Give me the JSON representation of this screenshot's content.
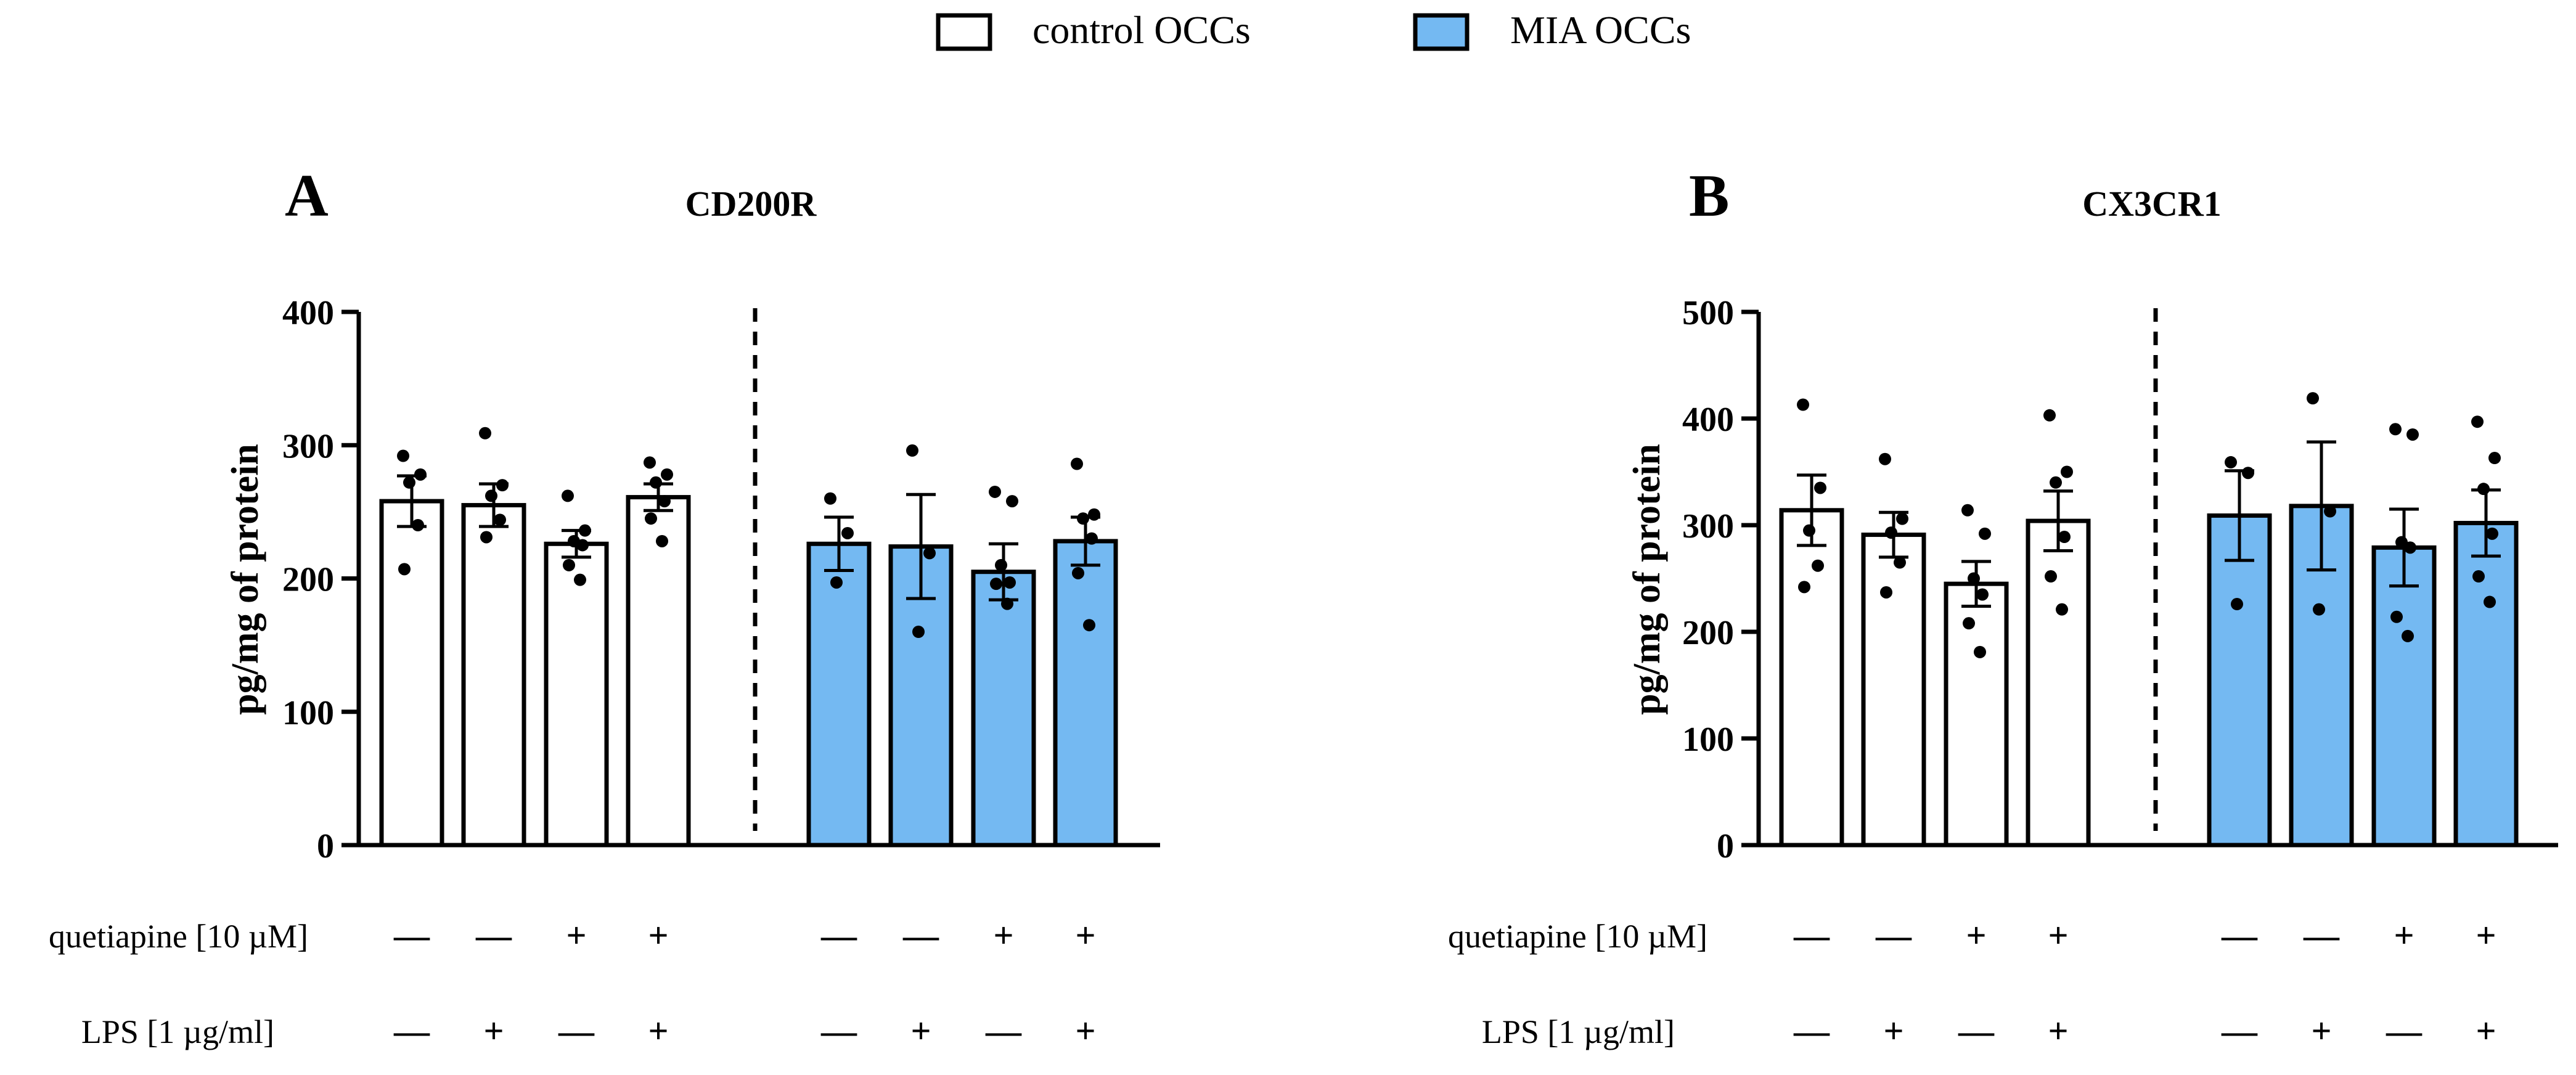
{
  "legend": {
    "items": [
      {
        "label": "control OCCs",
        "color": "#ffffff"
      },
      {
        "label": "MIA OCCs",
        "color": "#74b9f2"
      }
    ]
  },
  "row_labels": {
    "quetiapine": "quetiapine [10 µM]",
    "lps": "LPS [1 µg/ml]"
  },
  "condition_signs": {
    "quetiapine": [
      "—",
      "—",
      "+",
      "+",
      "—",
      "—",
      "+",
      "+"
    ],
    "lps": [
      "—",
      "+",
      "—",
      "+",
      "—",
      "+",
      "—",
      "+"
    ]
  },
  "chart_data": [
    {
      "type": "bar",
      "panel_label": "A",
      "title": "CD200R",
      "ylabel": "pg/mg of protein",
      "ylim": [
        0,
        400
      ],
      "yticks": [
        0,
        100,
        200,
        300,
        400
      ],
      "tick_labels": [
        "0",
        "100",
        "200",
        "300",
        "400"
      ],
      "groups": [
        {
          "name": "control OCCs",
          "color": "#ffffff",
          "bars": [
            {
              "mean": 258,
              "sem": 19,
              "points": [
                292,
                278,
                272,
                240,
                207
              ]
            },
            {
              "mean": 255,
              "sem": 16,
              "points": [
                309,
                270,
                262,
                244,
                231
              ]
            },
            {
              "mean": 226,
              "sem": 10,
              "points": [
                262,
                236,
                228,
                225,
                210,
                199
              ]
            },
            {
              "mean": 261,
              "sem": 10,
              "points": [
                287,
                278,
                272,
                258,
                245,
                228
              ]
            }
          ]
        },
        {
          "name": "MIA OCCs",
          "color": "#74b9f2",
          "bars": [
            {
              "mean": 226,
              "sem": 20,
              "points": [
                260,
                234,
                197
              ]
            },
            {
              "mean": 224,
              "sem": 39,
              "points": [
                296,
                219,
                160
              ]
            },
            {
              "mean": 205,
              "sem": 21,
              "points": [
                265,
                258,
                210,
                197,
                196,
                181
              ]
            },
            {
              "mean": 228,
              "sem": 18,
              "points": [
                286,
                248,
                245,
                230,
                204,
                165
              ]
            }
          ]
        }
      ]
    },
    {
      "type": "bar",
      "panel_label": "B",
      "title": "CX3CR1",
      "ylabel": "pg/mg of protein",
      "ylim": [
        0,
        500
      ],
      "yticks": [
        0,
        100,
        200,
        300,
        400,
        500
      ],
      "tick_labels": [
        "0",
        "100",
        "200",
        "300",
        "400",
        "500"
      ],
      "groups": [
        {
          "name": "control OCCs",
          "color": "#ffffff",
          "bars": [
            {
              "mean": 314,
              "sem": 33,
              "points": [
                413,
                335,
                295,
                262,
                242
              ]
            },
            {
              "mean": 291,
              "sem": 21,
              "points": [
                362,
                306,
                293,
                265,
                237
              ]
            },
            {
              "mean": 245,
              "sem": 21,
              "points": [
                314,
                292,
                250,
                235,
                208,
                181
              ]
            },
            {
              "mean": 304,
              "sem": 28,
              "points": [
                403,
                350,
                340,
                289,
                252,
                221
              ]
            }
          ]
        },
        {
          "name": "MIA OCCs",
          "color": "#74b9f2",
          "bars": [
            {
              "mean": 309,
              "sem": 42,
              "points": [
                359,
                349,
                226
              ]
            },
            {
              "mean": 318,
              "sem": 60,
              "points": [
                419,
                313,
                221
              ]
            },
            {
              "mean": 279,
              "sem": 36,
              "points": [
                390,
                385,
                284,
                279,
                214,
                196
              ]
            },
            {
              "mean": 302,
              "sem": 31,
              "points": [
                397,
                363,
                334,
                292,
                252,
                228
              ]
            }
          ]
        }
      ]
    }
  ]
}
